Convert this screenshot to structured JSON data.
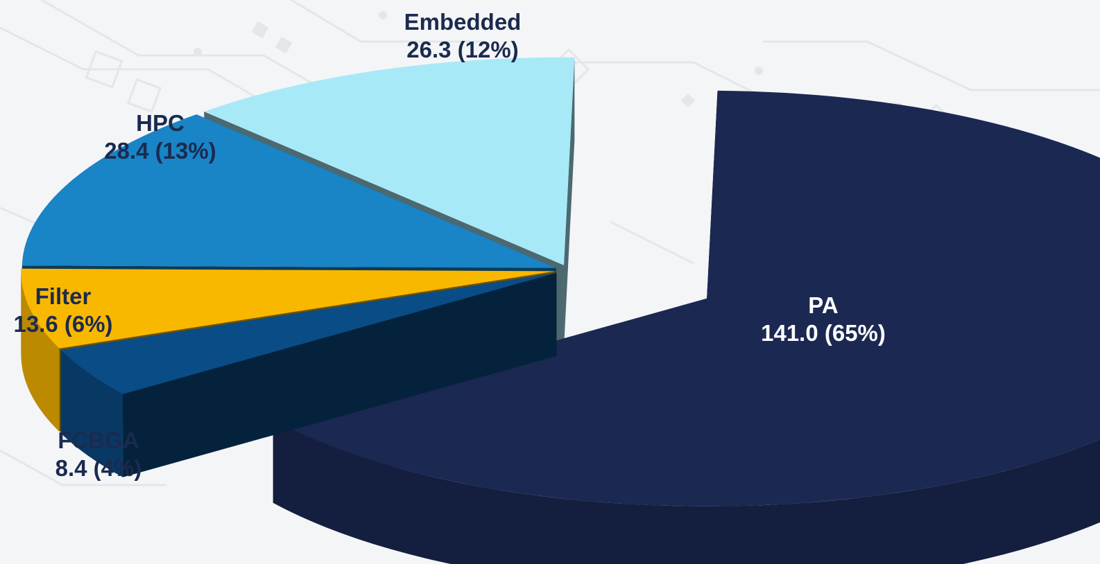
{
  "chart_data": {
    "type": "pie",
    "style": "3d-exploded",
    "slices": [
      {
        "label": "PA",
        "value": 141.0,
        "percent": 65,
        "value_text": "141.0 (65%)",
        "color": "#1b2852"
      },
      {
        "label": "FCBGA",
        "value": 8.4,
        "percent": 4,
        "value_text": "8.4 (4%)",
        "color": "#0a4c86"
      },
      {
        "label": "Filter",
        "value": 13.6,
        "percent": 6,
        "value_text": "13.6 (6%)",
        "color": "#f9b800"
      },
      {
        "label": "HPC",
        "value": 28.4,
        "percent": 13,
        "value_text": "28.4 (13%)",
        "color": "#1984c6"
      },
      {
        "label": "Embedded",
        "value": 26.3,
        "percent": 12,
        "value_text": "26.3 (12%)",
        "color": "#a8e9f8"
      }
    ],
    "legend": "none",
    "data_labels": "outside (PA inside)"
  },
  "colors": {
    "background": "#f4f5f7",
    "label_text": "#1b2a4e",
    "label_text_on_dark": "#ffffff"
  }
}
